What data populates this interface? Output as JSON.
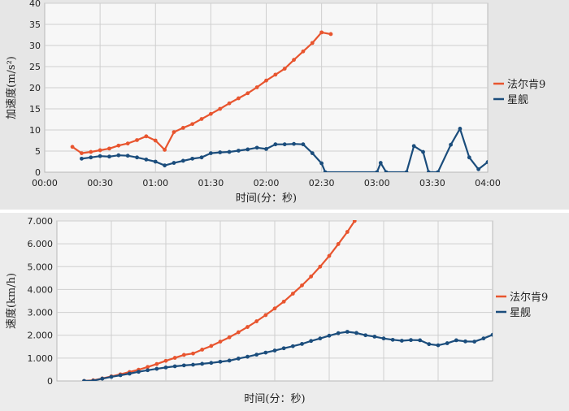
{
  "colors": {
    "falcon": "#e8552f",
    "starship": "#1b4d7c",
    "plot_bg": "#f7f7f7",
    "grid": "#cfcfcf"
  },
  "chart_data": [
    {
      "type": "line",
      "title": "",
      "xlabel": "时间(分：秒)",
      "ylabel": "加速度(m/s²)",
      "xlim": [
        0,
        240
      ],
      "ylim": [
        0,
        40
      ],
      "x_ticks": [
        0,
        30,
        60,
        90,
        120,
        150,
        180,
        210,
        240
      ],
      "x_tick_labels": [
        "00:00",
        "00:30",
        "01:00",
        "01:30",
        "02:00",
        "02:30",
        "03:00",
        "03:30",
        "04:00"
      ],
      "y_ticks": [
        0,
        5,
        10,
        15,
        20,
        25,
        30,
        35,
        40
      ],
      "y_tick_labels": [
        "0",
        "5",
        "10",
        "15",
        "20",
        "25",
        "30",
        "35",
        "40"
      ],
      "grid": true,
      "legend_position": "right",
      "series": [
        {
          "name": "法尔肯9",
          "color_key": "falcon",
          "points": [
            [
              15,
              6
            ],
            [
              20,
              4.5
            ],
            [
              25,
              4.8
            ],
            [
              30,
              5.2
            ],
            [
              35,
              5.6
            ],
            [
              40,
              6.3
            ],
            [
              45,
              6.8
            ],
            [
              50,
              7.6
            ],
            [
              55,
              8.5
            ],
            [
              60,
              7.5
            ],
            [
              65,
              5.3
            ],
            [
              70,
              9.5
            ],
            [
              75,
              10.5
            ],
            [
              80,
              11.4
            ],
            [
              85,
              12.6
            ],
            [
              90,
              13.8
            ],
            [
              95,
              15
            ],
            [
              100,
              16.3
            ],
            [
              105,
              17.5
            ],
            [
              110,
              18.7
            ],
            [
              115,
              20.1
            ],
            [
              120,
              21.7
            ],
            [
              125,
              23.1
            ],
            [
              130,
              24.5
            ],
            [
              135,
              26.6
            ],
            [
              140,
              28.6
            ],
            [
              145,
              30.6
            ],
            [
              150,
              33.1
            ],
            [
              155,
              32.7
            ]
          ]
        },
        {
          "name": "星舰",
          "color_key": "starship",
          "points": [
            [
              20,
              3.2
            ],
            [
              25,
              3.5
            ],
            [
              30,
              3.8
            ],
            [
              35,
              3.7
            ],
            [
              40,
              4
            ],
            [
              45,
              3.9
            ],
            [
              50,
              3.5
            ],
            [
              55,
              3
            ],
            [
              60,
              2.5
            ],
            [
              65,
              1.6
            ],
            [
              70,
              2.2
            ],
            [
              75,
              2.7
            ],
            [
              80,
              3.2
            ],
            [
              85,
              3.5
            ],
            [
              90,
              4.5
            ],
            [
              95,
              4.7
            ],
            [
              100,
              4.8
            ],
            [
              105,
              5.1
            ],
            [
              110,
              5.4
            ],
            [
              115,
              5.8
            ],
            [
              120,
              5.5
            ],
            [
              125,
              6.6
            ],
            [
              130,
              6.6
            ],
            [
              135,
              6.7
            ],
            [
              140,
              6.6
            ],
            [
              145,
              4.5
            ],
            [
              150,
              2.1
            ],
            [
              152,
              0
            ],
            [
              180,
              0
            ],
            [
              182,
              2.2
            ],
            [
              185,
              0
            ],
            [
              196,
              0
            ],
            [
              200,
              6.2
            ],
            [
              205,
              4.8
            ],
            [
              208,
              0
            ],
            [
              213,
              0
            ],
            [
              220,
              6.5
            ],
            [
              225,
              10.3
            ],
            [
              230,
              3.5
            ],
            [
              235,
              0.7
            ],
            [
              240,
              2.4
            ]
          ]
        }
      ]
    },
    {
      "type": "line",
      "title": "",
      "xlabel": "时间(分：秒)",
      "ylabel": "速度(km/h)",
      "xlim": [
        0,
        240
      ],
      "ylim": [
        0,
        7000
      ],
      "x_ticks": [
        0,
        30,
        60,
        90,
        120,
        150,
        180,
        210,
        240
      ],
      "x_tick_labels": [],
      "y_ticks": [
        0,
        1000,
        2000,
        3000,
        4000,
        5000,
        6000,
        7000
      ],
      "y_tick_labels": [
        "0",
        "1.000",
        "2.000",
        "3.000",
        "4.000",
        "5.000",
        "6.000",
        "7.000"
      ],
      "grid": true,
      "legend_position": "right",
      "series": [
        {
          "name": "法尔肯9",
          "color_key": "falcon",
          "points": [
            [
              15,
              0
            ],
            [
              20,
              30
            ],
            [
              25,
              110
            ],
            [
              30,
              200
            ],
            [
              35,
              290
            ],
            [
              40,
              390
            ],
            [
              45,
              490
            ],
            [
              50,
              610
            ],
            [
              55,
              740
            ],
            [
              60,
              880
            ],
            [
              65,
              1010
            ],
            [
              70,
              1140
            ],
            [
              75,
              1200
            ],
            [
              80,
              1370
            ],
            [
              85,
              1530
            ],
            [
              90,
              1720
            ],
            [
              95,
              1910
            ],
            [
              100,
              2130
            ],
            [
              105,
              2360
            ],
            [
              110,
              2610
            ],
            [
              115,
              2880
            ],
            [
              120,
              3170
            ],
            [
              125,
              3470
            ],
            [
              130,
              3820
            ],
            [
              135,
              4180
            ],
            [
              140,
              4570
            ],
            [
              145,
              5000
            ],
            [
              150,
              5470
            ],
            [
              155,
              5990
            ],
            [
              160,
              6520
            ],
            [
              164,
              7000
            ]
          ]
        },
        {
          "name": "星舰",
          "color_key": "starship",
          "points": [
            [
              15,
              0
            ],
            [
              20,
              10
            ],
            [
              25,
              100
            ],
            [
              30,
              180
            ],
            [
              35,
              250
            ],
            [
              40,
              320
            ],
            [
              45,
              400
            ],
            [
              50,
              470
            ],
            [
              55,
              530
            ],
            [
              60,
              590
            ],
            [
              65,
              640
            ],
            [
              70,
              680
            ],
            [
              75,
              710
            ],
            [
              80,
              750
            ],
            [
              85,
              790
            ],
            [
              90,
              840
            ],
            [
              95,
              890
            ],
            [
              100,
              980
            ],
            [
              105,
              1060
            ],
            [
              110,
              1150
            ],
            [
              115,
              1240
            ],
            [
              120,
              1330
            ],
            [
              125,
              1430
            ],
            [
              130,
              1520
            ],
            [
              135,
              1620
            ],
            [
              140,
              1750
            ],
            [
              145,
              1860
            ],
            [
              150,
              1980
            ],
            [
              155,
              2090
            ],
            [
              160,
              2150
            ],
            [
              165,
              2100
            ],
            [
              170,
              2000
            ],
            [
              175,
              1940
            ],
            [
              180,
              1860
            ],
            [
              185,
              1800
            ],
            [
              190,
              1760
            ],
            [
              195,
              1790
            ],
            [
              200,
              1780
            ],
            [
              205,
              1610
            ],
            [
              210,
              1560
            ],
            [
              215,
              1650
            ],
            [
              220,
              1780
            ],
            [
              225,
              1730
            ],
            [
              230,
              1720
            ],
            [
              235,
              1860
            ],
            [
              240,
              2020
            ],
            [
              245,
              2080
            ],
            [
              250,
              2100
            ],
            [
              255,
              2150
            ]
          ]
        }
      ]
    }
  ]
}
